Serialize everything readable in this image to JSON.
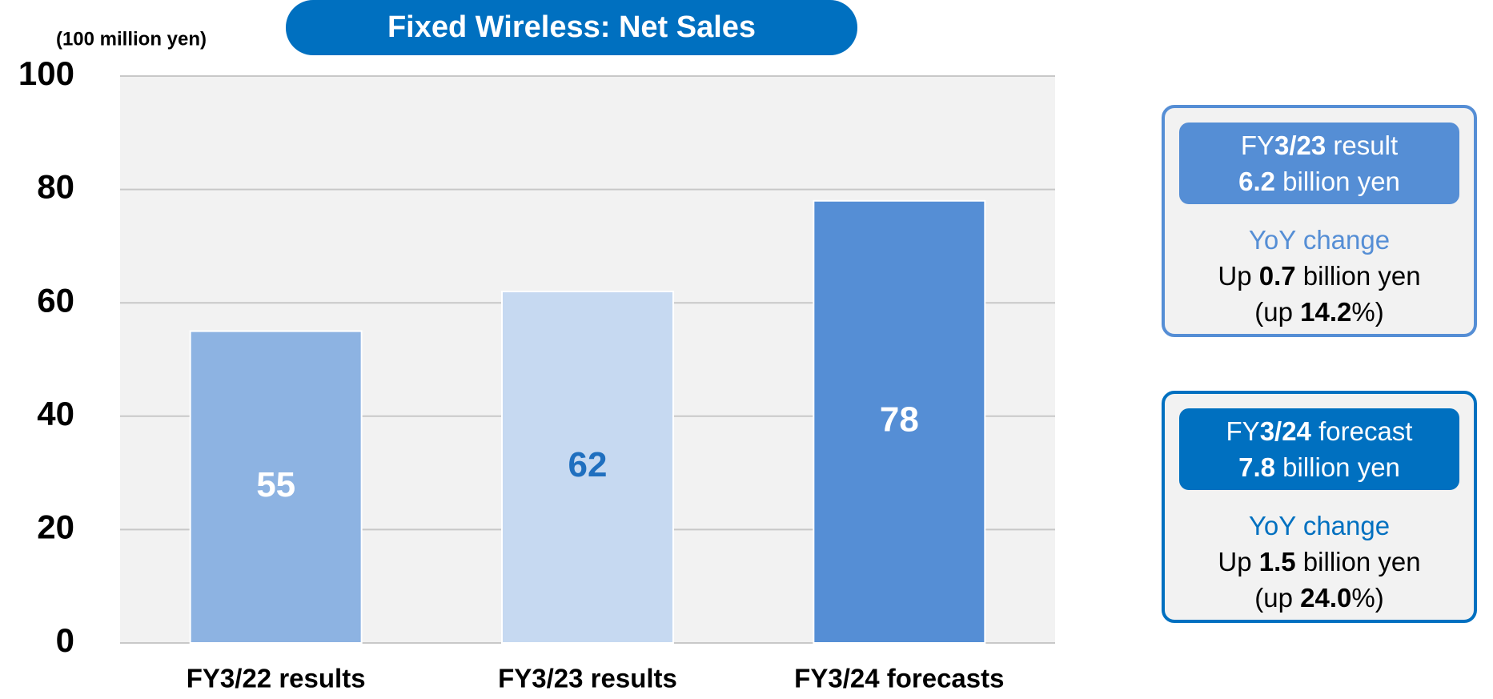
{
  "chart_data": {
    "type": "bar",
    "title": "Fixed Wireless: Net Sales",
    "y_axis_label": "(100 million yen)",
    "categories": [
      "FY3/22 results",
      "FY3/23 results",
      "FY3/24 forecasts"
    ],
    "values": [
      55,
      62,
      78
    ],
    "colors": [
      "#8db3e2",
      "#c6d9f1",
      "#558ed5"
    ],
    "value_label_colors": [
      "#ffffff",
      "#1f6fbf",
      "#ffffff"
    ],
    "title_color": "#0070c0",
    "plot_background": "#f2f2f2",
    "ylim": [
      0,
      100
    ],
    "yticks": [
      0,
      20,
      40,
      60,
      80,
      100
    ],
    "grid": true
  },
  "panels": [
    {
      "border_color": "#558ed5",
      "header_color": "#558ed5",
      "subtitle_color": "#558ed5",
      "header": [
        [
          {
            "text": "FY",
            "bold": false
          },
          {
            "text": "3/23",
            "bold": true
          },
          {
            "text": " result",
            "bold": false
          }
        ],
        [
          {
            "text": "6.2",
            "bold": true
          },
          {
            "text": " billion yen",
            "bold": false
          }
        ]
      ],
      "subtitle": "YoY change",
      "lines": [
        [
          {
            "text": "Up ",
            "bold": false
          },
          {
            "text": "0.7",
            "bold": true
          },
          {
            "text": " billion yen",
            "bold": false
          }
        ],
        [
          {
            "text": "(up ",
            "bold": false
          },
          {
            "text": "14.2",
            "bold": true
          },
          {
            "text": "%)",
            "bold": false
          }
        ]
      ]
    },
    {
      "border_color": "#0070c0",
      "header_color": "#0070c0",
      "subtitle_color": "#0070c0",
      "header": [
        [
          {
            "text": "FY",
            "bold": false
          },
          {
            "text": "3/24",
            "bold": true
          },
          {
            "text": " forecast",
            "bold": false
          }
        ],
        [
          {
            "text": "7.8",
            "bold": true
          },
          {
            "text": " billion yen",
            "bold": false
          }
        ]
      ],
      "subtitle": "YoY change",
      "lines": [
        [
          {
            "text": "Up ",
            "bold": false
          },
          {
            "text": "1.5",
            "bold": true
          },
          {
            "text": " billion yen",
            "bold": false
          }
        ],
        [
          {
            "text": "(up ",
            "bold": false
          },
          {
            "text": "24.0",
            "bold": true
          },
          {
            "text": "%)",
            "bold": false
          }
        ]
      ]
    }
  ]
}
